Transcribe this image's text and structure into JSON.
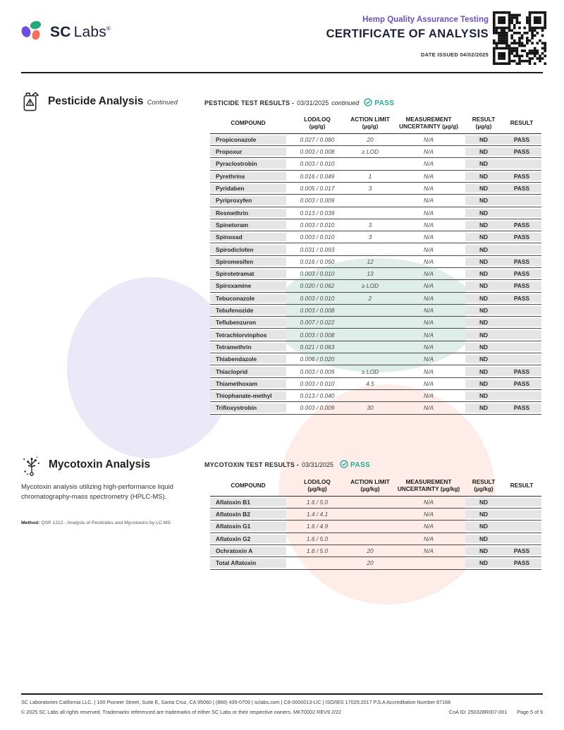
{
  "colors": {
    "brand_navy": "#1b2040",
    "accent_purple": "#6a50c7",
    "pass_teal": "#1fae92",
    "logo_purple": "#6C4EE0",
    "logo_green": "#27A77C",
    "logo_coral": "#F4705A",
    "row_gray": "#e5e5e5"
  },
  "header": {
    "logo_sc": "SC",
    "logo_labs": "Labs",
    "logo_reg": "®",
    "program": "Hemp Quality Assurance Testing",
    "title": "CERTIFICATE OF ANALYSIS",
    "date_issued": "DATE ISSUED 04/02/2025"
  },
  "pesticide": {
    "icon": "pesticide-jug-warning-icon",
    "section_title": "Pesticide Analysis",
    "section_note": "Continued",
    "heading": "PESTICIDE TEST RESULTS -",
    "heading_date": "03/31/2025",
    "heading_note": "continued",
    "status": "PASS",
    "columns": [
      {
        "l1": "COMPOUND",
        "l2": ""
      },
      {
        "l1": "LOD/LOQ",
        "l2": "(µg/g)"
      },
      {
        "l1": "ACTION LIMIT",
        "l2": "(µg/g)"
      },
      {
        "l1": "MEASUREMENT",
        "l2": "UNCERTAINTY (µg/g)"
      },
      {
        "l1": "RESULT",
        "l2": "(µg/g)"
      },
      {
        "l1": "RESULT",
        "l2": ""
      }
    ],
    "rows": [
      {
        "compound": "Propiconazole",
        "lod_loq": "0.027 / 0.080",
        "action_limit": "20",
        "uncertainty": "N/A",
        "result": "ND",
        "status": "PASS"
      },
      {
        "compound": "Propoxur",
        "lod_loq": "0.003 / 0.008",
        "action_limit": "≥ LOD",
        "uncertainty": "N/A",
        "result": "ND",
        "status": "PASS"
      },
      {
        "compound": "Pyraclostrobin",
        "lod_loq": "0.003 / 0.010",
        "action_limit": "",
        "uncertainty": "N/A",
        "result": "ND",
        "status": ""
      },
      {
        "compound": "Pyrethrins",
        "lod_loq": "0.016 / 0.049",
        "action_limit": "1",
        "uncertainty": "N/A",
        "result": "ND",
        "status": "PASS"
      },
      {
        "compound": "Pyridaben",
        "lod_loq": "0.005 / 0.017",
        "action_limit": "3",
        "uncertainty": "N/A",
        "result": "ND",
        "status": "PASS"
      },
      {
        "compound": "Pyriproxyfen",
        "lod_loq": "0.003 / 0.009",
        "action_limit": "",
        "uncertainty": "N/A",
        "result": "ND",
        "status": ""
      },
      {
        "compound": "Resmethrin",
        "lod_loq": "0.013 / 0.039",
        "action_limit": "",
        "uncertainty": "N/A",
        "result": "ND",
        "status": ""
      },
      {
        "compound": "Spinetoram",
        "lod_loq": "0.003 / 0.010",
        "action_limit": "3",
        "uncertainty": "N/A",
        "result": "ND",
        "status": "PASS"
      },
      {
        "compound": "Spinosad",
        "lod_loq": "0.003 / 0.010",
        "action_limit": "3",
        "uncertainty": "N/A",
        "result": "ND",
        "status": "PASS"
      },
      {
        "compound": "Spirodiclofen",
        "lod_loq": "0.031 / 0.093",
        "action_limit": "",
        "uncertainty": "N/A",
        "result": "ND",
        "status": ""
      },
      {
        "compound": "Spiromesifen",
        "lod_loq": "0.016 / 0.050",
        "action_limit": "12",
        "uncertainty": "N/A",
        "result": "ND",
        "status": "PASS"
      },
      {
        "compound": "Spirotetramat",
        "lod_loq": "0.003 / 0.010",
        "action_limit": "13",
        "uncertainty": "N/A",
        "result": "ND",
        "status": "PASS"
      },
      {
        "compound": "Spiroxamine",
        "lod_loq": "0.020 / 0.062",
        "action_limit": "≥ LOD",
        "uncertainty": "N/A",
        "result": "ND",
        "status": "PASS"
      },
      {
        "compound": "Tebuconazole",
        "lod_loq": "0.003 / 0.010",
        "action_limit": "2",
        "uncertainty": "N/A",
        "result": "ND",
        "status": "PASS"
      },
      {
        "compound": "Tebufenozide",
        "lod_loq": "0.003 / 0.008",
        "action_limit": "",
        "uncertainty": "N/A",
        "result": "ND",
        "status": ""
      },
      {
        "compound": "Teflubenzuron",
        "lod_loq": "0.007 / 0.022",
        "action_limit": "",
        "uncertainty": "N/A",
        "result": "ND",
        "status": ""
      },
      {
        "compound": "Tetrachlorvinphos",
        "lod_loq": "0.003 / 0.008",
        "action_limit": "",
        "uncertainty": "N/A",
        "result": "ND",
        "status": ""
      },
      {
        "compound": "Tetramethrin",
        "lod_loq": "0.021 / 0.063",
        "action_limit": "",
        "uncertainty": "N/A",
        "result": "ND",
        "status": ""
      },
      {
        "compound": "Thiabendazole",
        "lod_loq": "0.006 / 0.020",
        "action_limit": "",
        "uncertainty": "N/A",
        "result": "ND",
        "status": ""
      },
      {
        "compound": "Thiacloprid",
        "lod_loq": "0.003 / 0.009",
        "action_limit": "≥ LOD",
        "uncertainty": "N/A",
        "result": "ND",
        "status": "PASS"
      },
      {
        "compound": "Thiamethoxam",
        "lod_loq": "0.003 / 0.010",
        "action_limit": "4.5",
        "uncertainty": "N/A",
        "result": "ND",
        "status": "PASS"
      },
      {
        "compound": "Thiophanate-methyl",
        "lod_loq": "0.013 / 0.040",
        "action_limit": "",
        "uncertainty": "N/A",
        "result": "ND",
        "status": ""
      },
      {
        "compound": "Trifloxystrobin",
        "lod_loq": "0.003 / 0.009",
        "action_limit": "30",
        "uncertainty": "N/A",
        "result": "ND",
        "status": "PASS"
      }
    ]
  },
  "mycotoxin": {
    "icon": "mold-spore-icon",
    "section_title": "Mycotoxin Analysis",
    "description": "Mycotoxin analysis utilizing high-performance liquid chromatography-mass spectrometry (HPLC-MS).",
    "method_label": "Method:",
    "method": "QSP 1212 - Analysis of Pesticides and Mycotoxins by LC-MS",
    "heading": "MYCOTOXIN TEST RESULTS -",
    "heading_date": "03/31/2025",
    "status": "PASS",
    "columns": [
      {
        "l1": "COMPOUND",
        "l2": ""
      },
      {
        "l1": "LOD/LOQ",
        "l2": "(µg/kg)"
      },
      {
        "l1": "ACTION LIMIT",
        "l2": "(µg/kg)"
      },
      {
        "l1": "MEASUREMENT",
        "l2": "UNCERTAINTY (µg/kg)"
      },
      {
        "l1": "RESULT",
        "l2": "(µg/kg)"
      },
      {
        "l1": "RESULT",
        "l2": ""
      }
    ],
    "rows": [
      {
        "compound": "Aflatoxin B1",
        "lod_loq": "1.6 / 5.0",
        "action_limit": "",
        "uncertainty": "N/A",
        "result": "ND",
        "status": ""
      },
      {
        "compound": "Aflatoxin B2",
        "lod_loq": "1.4 / 4.1",
        "action_limit": "",
        "uncertainty": "N/A",
        "result": "ND",
        "status": ""
      },
      {
        "compound": "Aflatoxin G1",
        "lod_loq": "1.6 / 4.9",
        "action_limit": "",
        "uncertainty": "N/A",
        "result": "ND",
        "status": ""
      },
      {
        "compound": "Aflatoxin G2",
        "lod_loq": "1.6 / 5.0",
        "action_limit": "",
        "uncertainty": "N/A",
        "result": "ND",
        "status": ""
      },
      {
        "compound": "Ochratoxin A",
        "lod_loq": "1.6 / 5.0",
        "action_limit": "20",
        "uncertainty": "N/A",
        "result": "ND",
        "status": "PASS"
      },
      {
        "compound": "Total Aflatoxin",
        "lod_loq": "",
        "action_limit": "20",
        "uncertainty": "",
        "result": "ND",
        "status": "PASS"
      }
    ]
  },
  "footer": {
    "line1": "SC Laboratories California LLC. | 100 Pioneer Street, Suite E, Santa Cruz, CA 95060 | (866) 435-0709 | sclabs.com | C8-0000013-LIC | ISO/IES 17025:2017 PJLA Accreditation Number 87168",
    "line2": "© 2025 SC Labs all rights reserved. Trademarks referenced are trademarks of either SC Labs or their respective owners. MKT0002 REV9 2/22",
    "coa_id": "CoA ID: 250328R007-001",
    "page": "Page 5 of 9"
  }
}
